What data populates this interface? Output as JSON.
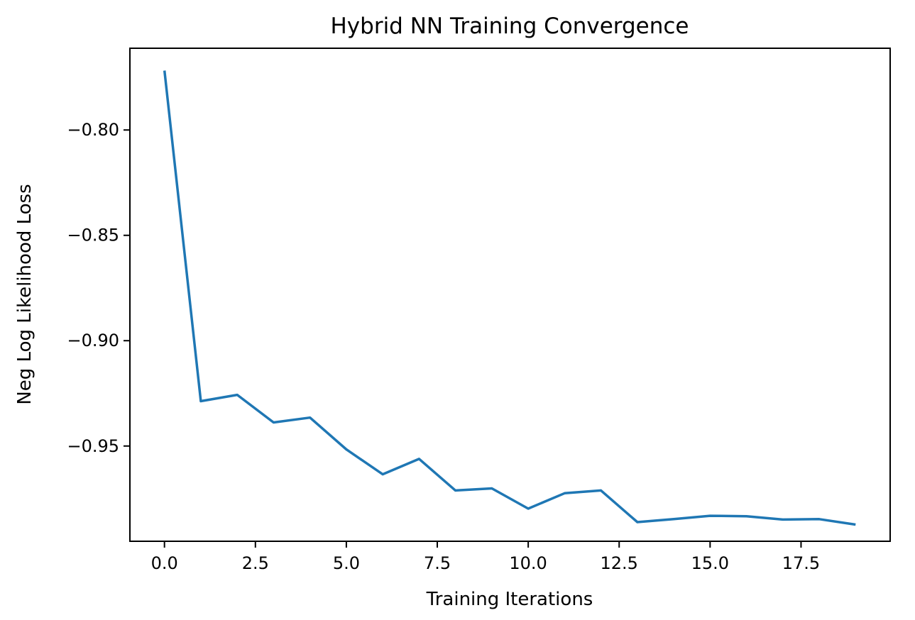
{
  "chart_data": {
    "type": "line",
    "title": "Hybrid NN Training Convergence",
    "xlabel": "Training Iterations",
    "ylabel": "Neg Log Likelihood Loss",
    "xlim": [
      -0.95,
      19.95
    ],
    "ylim": [
      -0.9952,
      -0.7612
    ],
    "xticks": [
      0.0,
      2.5,
      5.0,
      7.5,
      10.0,
      12.5,
      15.0,
      17.5
    ],
    "xtick_labels": [
      "0.0",
      "2.5",
      "5.0",
      "7.5",
      "10.0",
      "12.5",
      "15.0",
      "17.5"
    ],
    "yticks": [
      -0.8,
      -0.85,
      -0.9,
      -0.95
    ],
    "ytick_labels": [
      "−0.80",
      "−0.85",
      "−0.90",
      "−0.95"
    ],
    "grid": false,
    "series": [
      {
        "color": "#1f77b4",
        "x": [
          0,
          1,
          2,
          3,
          4,
          5,
          6,
          7,
          8,
          9,
          10,
          11,
          12,
          13,
          14,
          15,
          16,
          17,
          18,
          19
        ],
        "y": [
          -0.7718,
          -0.9287,
          -0.9257,
          -0.9388,
          -0.9365,
          -0.9516,
          -0.9634,
          -0.9561,
          -0.9711,
          -0.9701,
          -0.9797,
          -0.9724,
          -0.9711,
          -0.9861,
          -0.9847,
          -0.9831,
          -0.9833,
          -0.9849,
          -0.9847,
          -0.9873
        ]
      }
    ]
  }
}
